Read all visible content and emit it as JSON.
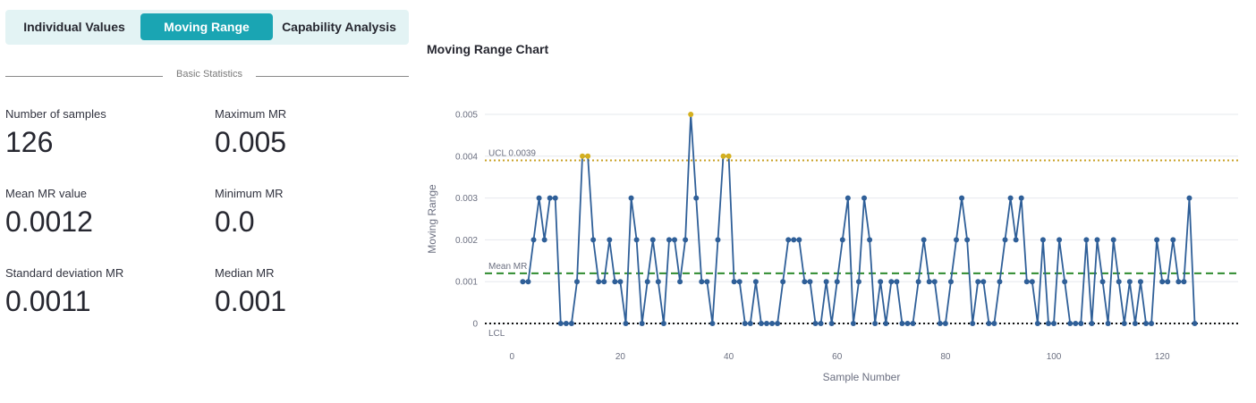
{
  "tabs": [
    {
      "label": "Individual Values",
      "active": false
    },
    {
      "label": "Moving Range",
      "active": true
    },
    {
      "label": "Capability Analysis",
      "active": false
    }
  ],
  "section_label": "Basic Statistics",
  "metrics": {
    "num_samples": {
      "label": "Number of samples",
      "value": "126"
    },
    "max_mr": {
      "label": "Maximum MR",
      "value": "0.005"
    },
    "mean_mr": {
      "label": "Mean MR value",
      "value": "0.0012"
    },
    "min_mr": {
      "label": "Minimum MR",
      "value": "0.0"
    },
    "std_mr": {
      "label": "Standard deviation MR",
      "value": "0.0011"
    },
    "median_mr": {
      "label": "Median MR",
      "value": "0.001"
    }
  },
  "chart_data": {
    "type": "line",
    "title": "Moving Range Chart",
    "xlabel": "Sample Number",
    "ylabel": "Moving Range",
    "xlim": [
      -5,
      134
    ],
    "ylim": [
      0,
      0.005
    ],
    "x_ticks": [
      0,
      20,
      40,
      60,
      80,
      100,
      120
    ],
    "y_ticks": [
      0,
      0.001,
      0.002,
      0.003,
      0.004,
      0.005
    ],
    "y_tick_labels": [
      "0",
      "0.001",
      "0.002",
      "0.003",
      "0.004",
      "0.005"
    ],
    "x_start": 2,
    "values": [
      0.001,
      0.001,
      0.002,
      0.003,
      0.002,
      0.003,
      0.003,
      0,
      0,
      0,
      0.001,
      0.004,
      0.004,
      0.002,
      0.001,
      0.001,
      0.002,
      0.001,
      0.001,
      0,
      0.003,
      0.002,
      0,
      0.001,
      0.002,
      0.001,
      0,
      0.002,
      0.002,
      0.001,
      0.002,
      0.005,
      0.003,
      0.001,
      0.001,
      0,
      0.002,
      0.004,
      0.004,
      0.001,
      0.001,
      0,
      0,
      0.001,
      0,
      0,
      0,
      0,
      0.001,
      0.002,
      0.002,
      0.002,
      0.001,
      0.001,
      0,
      0,
      0.001,
      0,
      0.001,
      0.002,
      0.003,
      0,
      0.001,
      0.003,
      0.002,
      0,
      0.001,
      0,
      0.001,
      0.001,
      0,
      0,
      0,
      0.001,
      0.002,
      0.001,
      0.001,
      0,
      0,
      0.001,
      0.002,
      0.003,
      0.002,
      0,
      0.001,
      0.001,
      0,
      0,
      0.001,
      0.002,
      0.003,
      0.002,
      0.003,
      0.001,
      0.001,
      0,
      0.002,
      0,
      0,
      0.002,
      0.001,
      0,
      0,
      0,
      0.002,
      0,
      0.002,
      0.001,
      0,
      0.002,
      0.001,
      0,
      0.001,
      0,
      0.001,
      0,
      0,
      0.002,
      0.001,
      0.001,
      0.002,
      0.001,
      0.001,
      0.003,
      0
    ],
    "ucl": 0.0039,
    "mean": 0.0012,
    "lcl": 0,
    "ucl_label": "UCL 0.0039",
    "mean_label": "Mean MR",
    "lcl_label": "LCL",
    "colors": {
      "series": "#2f5f98",
      "out_of_control": "#d4b020",
      "ucl": "#c9a227",
      "mean": "#2e8b2e",
      "lcl": "#111111",
      "grid": "#e6e8ee"
    }
  }
}
